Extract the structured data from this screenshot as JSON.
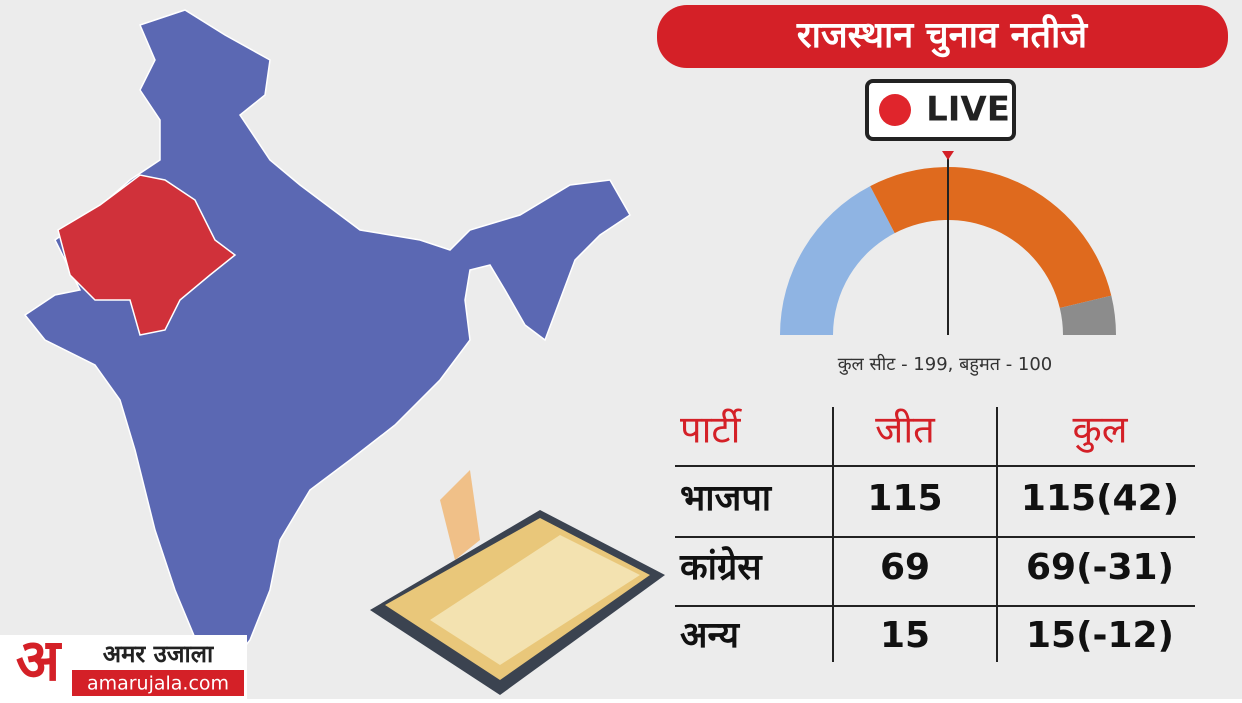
{
  "header": {
    "title": "राजस्थान चुनाव नतीजे",
    "live": "LIVE"
  },
  "chart_data": {
    "type": "gauge",
    "values": [
      69,
      115,
      15
    ],
    "colors": [
      "#8fb4e3",
      "#df6a1e",
      "#8c8c8c"
    ]
  },
  "caption": "कुल सीट - 199, बहुमत - 100",
  "table": {
    "header": [
      "पार्टी",
      "जीत",
      "कुल"
    ],
    "rows": [
      [
        "भाजपा",
        "115",
        "115(42)"
      ],
      [
        "कांग्रेस",
        "69",
        "69(-31)"
      ],
      [
        "अन्य",
        "15",
        "15(-12)"
      ]
    ]
  },
  "logo": {
    "mark": "अ",
    "name": "अमर उजाला",
    "site": "amarujala.com"
  }
}
